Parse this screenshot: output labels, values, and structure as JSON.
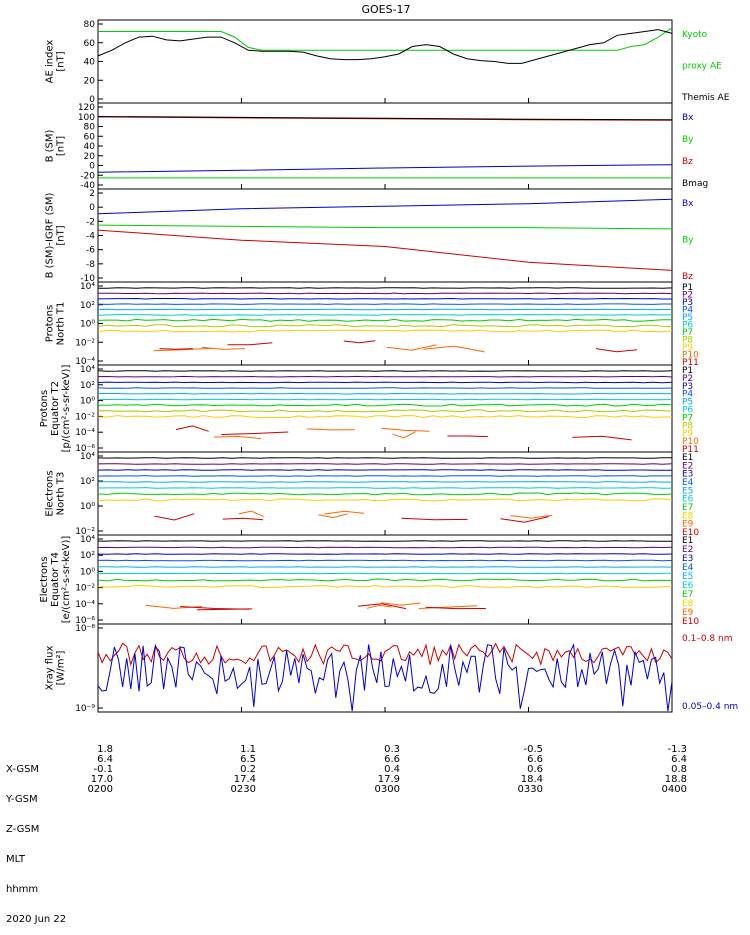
{
  "title": "GOES-17",
  "panels": [
    {
      "id": "ae",
      "ylabel": [
        "AE index",
        "[nT]"
      ],
      "ticks": [
        "80",
        "60",
        "40",
        "20",
        "0"
      ],
      "ylim": [
        0,
        80
      ],
      "legend": [
        {
          "text": "Kyoto",
          "color": "#00cc00"
        },
        {
          "text": "proxy AE",
          "color": "#00cc00"
        },
        {
          "text": "Themis AE",
          "color": "#000000"
        }
      ]
    },
    {
      "id": "bsm",
      "ylabel": [
        "B (SM)",
        "[nT]"
      ],
      "ticks": [
        "120",
        "100",
        "80",
        "60",
        "40",
        "20",
        "0",
        "-20",
        "-40"
      ],
      "ylim": [
        -45,
        120
      ],
      "legend": [
        {
          "text": "Bx",
          "color": "#0000cc"
        },
        {
          "text": "By",
          "color": "#00cc00"
        },
        {
          "text": "Bz",
          "color": "#cc0000"
        },
        {
          "text": "Bmag",
          "color": "#000000"
        }
      ]
    },
    {
      "id": "bsmigrf",
      "ylabel": [
        "B (SM)-IGRF (SM)",
        "[nT]"
      ],
      "ticks": [
        "2",
        "0",
        "-2",
        "-4",
        "-6",
        "-8",
        "-10"
      ],
      "ylim": [
        -11,
        2.5
      ],
      "legend": [
        {
          "text": "Bx",
          "color": "#0000cc"
        },
        {
          "text": "By",
          "color": "#00cc00"
        },
        {
          "text": "Bz",
          "color": "#cc0000"
        }
      ]
    },
    {
      "id": "pn",
      "ylabel": [
        "Protons",
        "North T1"
      ],
      "ticks": [
        "10⁴",
        "10²",
        "10⁰",
        "10⁻²",
        "10⁻⁴"
      ],
      "legend": [
        {
          "text": "P1",
          "color": "#000000"
        },
        {
          "text": "P2",
          "color": "#660066"
        },
        {
          "text": "P3",
          "color": "#0000cc"
        },
        {
          "text": "P4",
          "color": "#0055ff"
        },
        {
          "text": "P5",
          "color": "#00aaff"
        },
        {
          "text": "P6",
          "color": "#00cccc"
        },
        {
          "text": "P7",
          "color": "#00cc00"
        },
        {
          "text": "P8",
          "color": "#aacc00"
        },
        {
          "text": "P9",
          "color": "#ffcc00"
        },
        {
          "text": "P10",
          "color": "#ff6600"
        },
        {
          "text": "P11",
          "color": "#cc0000"
        }
      ]
    },
    {
      "id": "pe",
      "ylabel": [
        "Protons",
        "Equator T2",
        "[p/(cm²-s-sr-keV)]"
      ],
      "ticks": [
        "10⁴",
        "10²",
        "10⁰",
        "10⁻²",
        "10⁻⁴",
        "10⁻⁶"
      ],
      "legend": [
        {
          "text": "P1",
          "color": "#000000"
        },
        {
          "text": "P2",
          "color": "#660066"
        },
        {
          "text": "P3",
          "color": "#0000cc"
        },
        {
          "text": "P4",
          "color": "#0055ff"
        },
        {
          "text": "P5",
          "color": "#00aaff"
        },
        {
          "text": "P6",
          "color": "#00cccc"
        },
        {
          "text": "P7",
          "color": "#00cc00"
        },
        {
          "text": "P8",
          "color": "#aacc00"
        },
        {
          "text": "P9",
          "color": "#ffcc00"
        },
        {
          "text": "P10",
          "color": "#ff6600"
        },
        {
          "text": "P11",
          "color": "#cc0000"
        }
      ]
    },
    {
      "id": "en",
      "ylabel": [
        "Electrons",
        "North T3"
      ],
      "ticks": [
        "10⁴",
        "10²",
        "10⁰",
        "10⁻²"
      ],
      "legend": [
        {
          "text": "E1",
          "color": "#000000"
        },
        {
          "text": "E2",
          "color": "#660066"
        },
        {
          "text": "E3",
          "color": "#0000cc"
        },
        {
          "text": "E4",
          "color": "#0055ff"
        },
        {
          "text": "E5",
          "color": "#00aaff"
        },
        {
          "text": "E6",
          "color": "#00cccc"
        },
        {
          "text": "E7",
          "color": "#00cc00"
        },
        {
          "text": "E8",
          "color": "#ffcc00"
        },
        {
          "text": "E9",
          "color": "#ff6600"
        },
        {
          "text": "E10",
          "color": "#cc0000"
        }
      ]
    },
    {
      "id": "ee",
      "ylabel": [
        "Electrons",
        "Equator T4",
        "[e/(cm²-s-sr-keV)]"
      ],
      "ticks": [
        "10⁴",
        "10²",
        "10⁰",
        "10⁻²",
        "10⁻⁴",
        "10⁻⁶"
      ],
      "legend": [
        {
          "text": "E1",
          "color": "#000000"
        },
        {
          "text": "E2",
          "color": "#660066"
        },
        {
          "text": "E3",
          "color": "#0000cc"
        },
        {
          "text": "E4",
          "color": "#0055ff"
        },
        {
          "text": "E5",
          "color": "#00aaff"
        },
        {
          "text": "E6",
          "color": "#00cccc"
        },
        {
          "text": "E7",
          "color": "#00cc00"
        },
        {
          "text": "E8",
          "color": "#ffcc00"
        },
        {
          "text": "E9",
          "color": "#ff6600"
        },
        {
          "text": "E10",
          "color": "#cc0000"
        }
      ]
    },
    {
      "id": "xray",
      "ylabel": [
        "Xray flux",
        "[W/m²]"
      ],
      "ticks": [
        "10⁻⁸",
        "10⁻⁹"
      ],
      "legend": [
        {
          "text": "0.1–0.8 nm",
          "color": "#cc0000"
        },
        {
          "text": "0.05–0.4 nm",
          "color": "#0000cc"
        }
      ]
    }
  ],
  "footer": {
    "row_labels": [
      "X-GSM",
      "Y-GSM",
      "Z-GSM",
      "MLT",
      "hhmm",
      "2020 Jun 22"
    ],
    "columns": [
      [
        "1.8",
        "6.4",
        "-0.1",
        "17.0",
        "0200"
      ],
      [
        "1.1",
        "6.5",
        "0.2",
        "17.4",
        "0230"
      ],
      [
        "0.3",
        "6.6",
        "0.4",
        "17.9",
        "0300"
      ],
      [
        "-0.5",
        "6.6",
        "0.6",
        "18.4",
        "0330"
      ],
      [
        "-1.3",
        "6.4",
        "0.8",
        "18.8",
        "0400"
      ]
    ]
  },
  "chart_data": {
    "type": "line",
    "title": "GOES-17",
    "x_time_ticks": [
      "0200",
      "0230",
      "0300",
      "0330",
      "0400"
    ],
    "series": [
      {
        "panel": "ae",
        "name": "Kyoto",
        "color": "#00cc00",
        "values": [
          72,
          72,
          72,
          72,
          72,
          72,
          72,
          72,
          72,
          72,
          66,
          55,
          52,
          52,
          52,
          52,
          52,
          52,
          52,
          52,
          52,
          52,
          52,
          52,
          52,
          52,
          52,
          52,
          52,
          52,
          52,
          52,
          52,
          52,
          52,
          52,
          52,
          52,
          52,
          56,
          58,
          66,
          76
        ]
      },
      {
        "panel": "ae",
        "name": "Themis AE",
        "color": "#000000",
        "values": [
          46,
          52,
          60,
          66,
          67,
          63,
          62,
          64,
          66,
          66,
          60,
          52,
          51,
          51,
          51,
          50,
          46,
          43,
          42,
          42,
          43,
          45,
          48,
          56,
          58,
          56,
          48,
          43,
          41,
          40,
          38,
          38,
          42,
          46,
          50,
          54,
          58,
          60,
          68,
          70,
          72,
          74,
          70
        ]
      },
      {
        "panel": "bsm",
        "name": "Bz",
        "color": "#cc0000",
        "values": [
          99,
          97,
          95,
          93,
          92
        ]
      },
      {
        "panel": "bsm",
        "name": "Bmag",
        "color": "#000000",
        "values": [
          100,
          98,
          96,
          94,
          93
        ]
      },
      {
        "panel": "bsm",
        "name": "Bx",
        "color": "#0000cc",
        "values": [
          -18,
          -14,
          -9,
          -5,
          -2
        ]
      },
      {
        "panel": "bsm",
        "name": "By",
        "color": "#00cc00",
        "values": [
          -30,
          -30,
          -30,
          -30,
          -30
        ]
      },
      {
        "panel": "bsmigrf",
        "name": "Bx",
        "color": "#0000cc",
        "values": [
          -0.8,
          0,
          0.4,
          0.8,
          1.5
        ]
      },
      {
        "panel": "bsmigrf",
        "name": "By",
        "color": "#00cc00",
        "values": [
          -2.6,
          -2.8,
          -3.0,
          -3.0,
          -3.2
        ]
      },
      {
        "panel": "bsmigrf",
        "name": "Bz",
        "color": "#cc0000",
        "values": [
          -3.4,
          -5.0,
          -6.0,
          -8.5,
          -9.8
        ]
      },
      {
        "panel": "xray",
        "name": "0.1-0.8 nm",
        "color": "#cc0000"
      },
      {
        "panel": "xray",
        "name": "0.05-0.4 nm",
        "color": "#0000cc"
      }
    ]
  }
}
